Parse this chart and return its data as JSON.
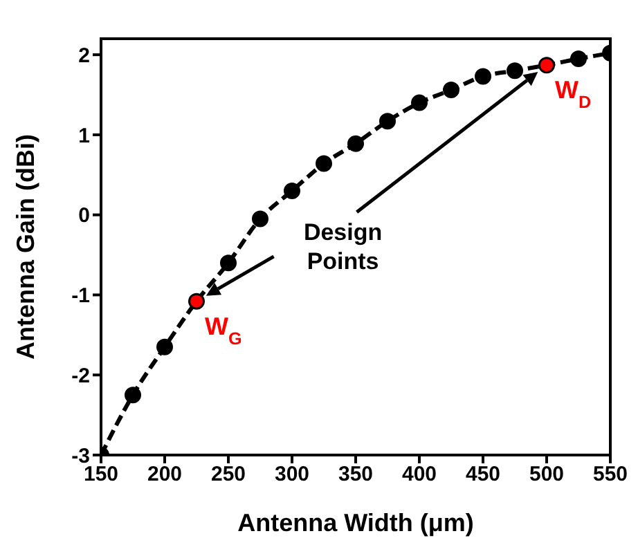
{
  "chart_data": {
    "type": "line",
    "xlabel": "Antenna Width (μm)",
    "ylabel": "Antenna Gain (dBi)",
    "xlim": [
      150,
      550
    ],
    "xticks": [
      150,
      200,
      250,
      300,
      350,
      400,
      450,
      500,
      550
    ],
    "ylim": [
      -3,
      2.2
    ],
    "yticks": [
      -3,
      -2,
      -1,
      0,
      1,
      2
    ],
    "grid": false,
    "legend": false,
    "marker": "circle",
    "line_style": "dashed",
    "x": [
      150,
      175,
      200,
      225,
      250,
      275,
      300,
      325,
      350,
      375,
      400,
      425,
      450,
      475,
      500,
      525,
      550
    ],
    "series": [
      {
        "color": "#000000",
        "values": [
          -3,
          -2.25,
          -1.65,
          -1.08,
          -0.6,
          -0.05,
          0.3,
          0.64,
          0.89,
          1.17,
          1.4,
          1.56,
          1.73,
          1.8,
          1.87,
          1.95,
          2.02
        ]
      },
      {
        "type": "scatter",
        "color": "#ff0000",
        "x": [
          225,
          500
        ],
        "values": [
          -1.08,
          1.87
        ]
      }
    ],
    "annotations": [
      {
        "text": "W$_{G}$",
        "x": 225,
        "y": -1.08
      },
      {
        "text": "W$_{D}$",
        "x": 500,
        "y": 1.87
      },
      "Design Points"
    ]
  }
}
